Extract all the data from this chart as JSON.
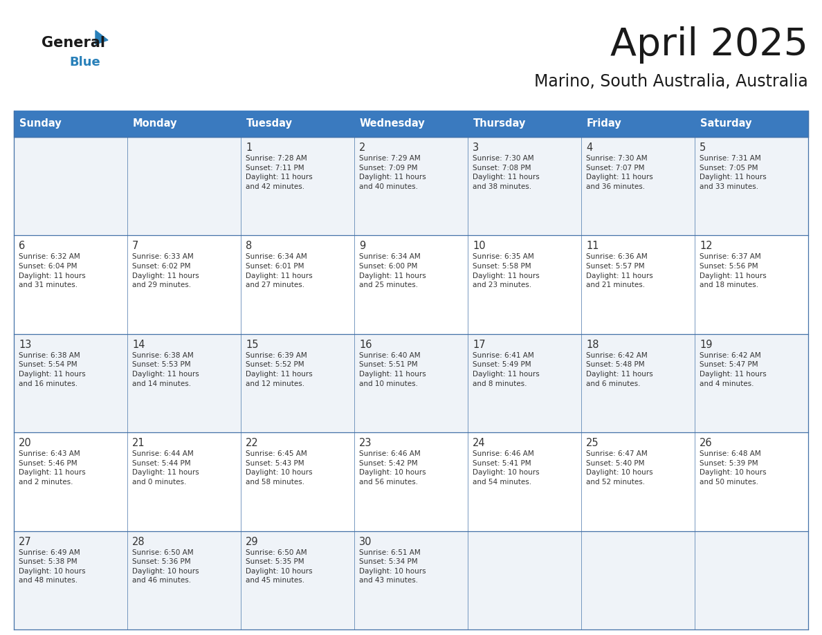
{
  "title": "April 2025",
  "subtitle": "Marino, South Australia, Australia",
  "header_bg": "#3a7abf",
  "header_text": "#ffffff",
  "row_bg_light": "#f0f4f8",
  "row_bg_white": "#ffffff",
  "cell_border_color": "#4472a8",
  "day_headers": [
    "Sunday",
    "Monday",
    "Tuesday",
    "Wednesday",
    "Thursday",
    "Friday",
    "Saturday"
  ],
  "title_color": "#1a1a1a",
  "subtitle_color": "#1a1a1a",
  "text_color": "#333333",
  "logo_general_color": "#1a1a1a",
  "logo_blue_color": "#2980b9",
  "logo_triangle_color": "#2980b9",
  "calendar": [
    [
      {
        "day": "",
        "info": ""
      },
      {
        "day": "",
        "info": ""
      },
      {
        "day": "1",
        "info": "Sunrise: 7:28 AM\nSunset: 7:11 PM\nDaylight: 11 hours\nand 42 minutes."
      },
      {
        "day": "2",
        "info": "Sunrise: 7:29 AM\nSunset: 7:09 PM\nDaylight: 11 hours\nand 40 minutes."
      },
      {
        "day": "3",
        "info": "Sunrise: 7:30 AM\nSunset: 7:08 PM\nDaylight: 11 hours\nand 38 minutes."
      },
      {
        "day": "4",
        "info": "Sunrise: 7:30 AM\nSunset: 7:07 PM\nDaylight: 11 hours\nand 36 minutes."
      },
      {
        "day": "5",
        "info": "Sunrise: 7:31 AM\nSunset: 7:05 PM\nDaylight: 11 hours\nand 33 minutes."
      }
    ],
    [
      {
        "day": "6",
        "info": "Sunrise: 6:32 AM\nSunset: 6:04 PM\nDaylight: 11 hours\nand 31 minutes."
      },
      {
        "day": "7",
        "info": "Sunrise: 6:33 AM\nSunset: 6:02 PM\nDaylight: 11 hours\nand 29 minutes."
      },
      {
        "day": "8",
        "info": "Sunrise: 6:34 AM\nSunset: 6:01 PM\nDaylight: 11 hours\nand 27 minutes."
      },
      {
        "day": "9",
        "info": "Sunrise: 6:34 AM\nSunset: 6:00 PM\nDaylight: 11 hours\nand 25 minutes."
      },
      {
        "day": "10",
        "info": "Sunrise: 6:35 AM\nSunset: 5:58 PM\nDaylight: 11 hours\nand 23 minutes."
      },
      {
        "day": "11",
        "info": "Sunrise: 6:36 AM\nSunset: 5:57 PM\nDaylight: 11 hours\nand 21 minutes."
      },
      {
        "day": "12",
        "info": "Sunrise: 6:37 AM\nSunset: 5:56 PM\nDaylight: 11 hours\nand 18 minutes."
      }
    ],
    [
      {
        "day": "13",
        "info": "Sunrise: 6:38 AM\nSunset: 5:54 PM\nDaylight: 11 hours\nand 16 minutes."
      },
      {
        "day": "14",
        "info": "Sunrise: 6:38 AM\nSunset: 5:53 PM\nDaylight: 11 hours\nand 14 minutes."
      },
      {
        "day": "15",
        "info": "Sunrise: 6:39 AM\nSunset: 5:52 PM\nDaylight: 11 hours\nand 12 minutes."
      },
      {
        "day": "16",
        "info": "Sunrise: 6:40 AM\nSunset: 5:51 PM\nDaylight: 11 hours\nand 10 minutes."
      },
      {
        "day": "17",
        "info": "Sunrise: 6:41 AM\nSunset: 5:49 PM\nDaylight: 11 hours\nand 8 minutes."
      },
      {
        "day": "18",
        "info": "Sunrise: 6:42 AM\nSunset: 5:48 PM\nDaylight: 11 hours\nand 6 minutes."
      },
      {
        "day": "19",
        "info": "Sunrise: 6:42 AM\nSunset: 5:47 PM\nDaylight: 11 hours\nand 4 minutes."
      }
    ],
    [
      {
        "day": "20",
        "info": "Sunrise: 6:43 AM\nSunset: 5:46 PM\nDaylight: 11 hours\nand 2 minutes."
      },
      {
        "day": "21",
        "info": "Sunrise: 6:44 AM\nSunset: 5:44 PM\nDaylight: 11 hours\nand 0 minutes."
      },
      {
        "day": "22",
        "info": "Sunrise: 6:45 AM\nSunset: 5:43 PM\nDaylight: 10 hours\nand 58 minutes."
      },
      {
        "day": "23",
        "info": "Sunrise: 6:46 AM\nSunset: 5:42 PM\nDaylight: 10 hours\nand 56 minutes."
      },
      {
        "day": "24",
        "info": "Sunrise: 6:46 AM\nSunset: 5:41 PM\nDaylight: 10 hours\nand 54 minutes."
      },
      {
        "day": "25",
        "info": "Sunrise: 6:47 AM\nSunset: 5:40 PM\nDaylight: 10 hours\nand 52 minutes."
      },
      {
        "day": "26",
        "info": "Sunrise: 6:48 AM\nSunset: 5:39 PM\nDaylight: 10 hours\nand 50 minutes."
      }
    ],
    [
      {
        "day": "27",
        "info": "Sunrise: 6:49 AM\nSunset: 5:38 PM\nDaylight: 10 hours\nand 48 minutes."
      },
      {
        "day": "28",
        "info": "Sunrise: 6:50 AM\nSunset: 5:36 PM\nDaylight: 10 hours\nand 46 minutes."
      },
      {
        "day": "29",
        "info": "Sunrise: 6:50 AM\nSunset: 5:35 PM\nDaylight: 10 hours\nand 45 minutes."
      },
      {
        "day": "30",
        "info": "Sunrise: 6:51 AM\nSunset: 5:34 PM\nDaylight: 10 hours\nand 43 minutes."
      },
      {
        "day": "",
        "info": ""
      },
      {
        "day": "",
        "info": ""
      },
      {
        "day": "",
        "info": ""
      }
    ]
  ],
  "row_bg_colors": [
    "#eff3f8",
    "#ffffff",
    "#eff3f8",
    "#ffffff",
    "#eff3f8"
  ]
}
